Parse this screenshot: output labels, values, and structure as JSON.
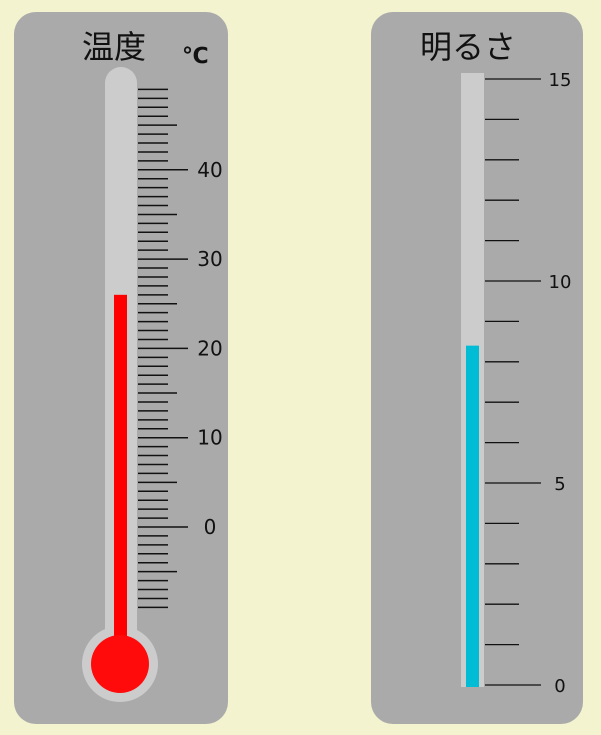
{
  "thermometer": {
    "title": "温度",
    "unit": "℃",
    "value": 26,
    "min": -9,
    "max": 49,
    "labels": [
      "40",
      "30",
      "20",
      "10",
      "0"
    ],
    "fill_color": "#ff0000"
  },
  "brightness": {
    "title": "明るさ",
    "value": 8.4,
    "min": 0,
    "max": 15,
    "labels": [
      "15",
      "10",
      "5",
      "0"
    ],
    "fill_color": "#00bcd4"
  }
}
